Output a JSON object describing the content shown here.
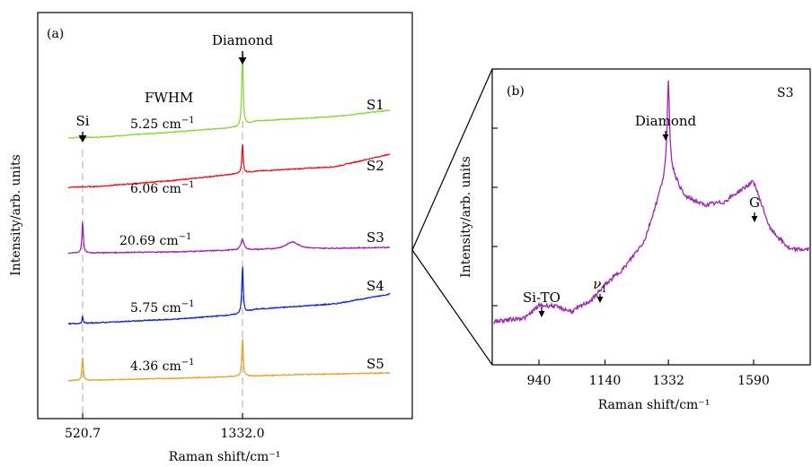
{
  "chart_data": [
    {
      "panel": "(a)",
      "type": "line",
      "xlabel": "Raman shift/cm⁻¹",
      "ylabel": "Intensity/arb. units",
      "xlim": [
        200,
        2100
      ],
      "xticks": [
        520.7,
        1332.0
      ],
      "xtick_labels": [
        "520.7",
        "1332.0"
      ],
      "grid": false,
      "legend": "none",
      "annotations": {
        "fwhm_header": "FWHM",
        "diamond_label": "Diamond",
        "si_label": "Si"
      },
      "fwhm_unit": "cm",
      "fwhm_exponent": "−1",
      "series": [
        {
          "name": "S1",
          "color": "#88d63a",
          "fwhm": "5.25",
          "baseline": [
            [
              260,
              7
            ],
            [
              600,
              9
            ],
            [
              1000,
              15
            ],
            [
              1300,
              20
            ],
            [
              1400,
              27
            ],
            [
              1800,
              32
            ],
            [
              2080,
              39
            ]
          ],
          "peaks": [
            {
              "x": 1332.0,
              "h": 88,
              "w": 4
            },
            {
              "x": 372,
              "h": -6,
              "w": 2
            }
          ]
        },
        {
          "name": "S2",
          "color": "#e31a1c",
          "fwhm": "6.06",
          "baseline": [
            [
              260,
              4
            ],
            [
              600,
              6
            ],
            [
              1000,
              13
            ],
            [
              1300,
              20
            ],
            [
              1400,
              23
            ],
            [
              1800,
              28
            ],
            [
              2080,
              42
            ]
          ],
          "peaks": [
            {
              "x": 1332.0,
              "h": 34,
              "w": 4
            },
            {
              "x": 372,
              "h": -5,
              "w": 2
            }
          ]
        },
        {
          "name": "S3",
          "color": "#9b27b0",
          "fwhm": "20.69",
          "baseline": [
            [
              260,
              2
            ],
            [
              600,
              3
            ],
            [
              1000,
              4
            ],
            [
              1300,
              6
            ],
            [
              1600,
              7
            ],
            [
              2080,
              9
            ]
          ],
          "peaks": [
            {
              "x": 520.7,
              "h": 36,
              "w": 4
            },
            {
              "x": 1332.0,
              "h": 12,
              "w": 9
            },
            {
              "x": 1585,
              "h": 8,
              "w": 40
            }
          ]
        },
        {
          "name": "S4",
          "color": "#1327c8",
          "fwhm": "5.75",
          "baseline": [
            [
              260,
              3
            ],
            [
              600,
              6
            ],
            [
              1000,
              10
            ],
            [
              1300,
              15
            ],
            [
              1400,
              21
            ],
            [
              1800,
              27
            ],
            [
              2080,
              38
            ]
          ],
          "peaks": [
            {
              "x": 1332.0,
              "h": 54,
              "w": 4
            },
            {
              "x": 520.7,
              "h": 8,
              "w": 3
            },
            {
              "x": 372,
              "h": -4,
              "w": 2
            }
          ]
        },
        {
          "name": "S5",
          "color": "#e3a52a",
          "fwhm": "4.36",
          "baseline": [
            [
              260,
              2
            ],
            [
              600,
              3
            ],
            [
              1000,
              5
            ],
            [
              1300,
              7
            ],
            [
              1600,
              9
            ],
            [
              2080,
              11
            ]
          ],
          "peaks": [
            {
              "x": 520.7,
              "h": 26,
              "w": 4
            },
            {
              "x": 1332.0,
              "h": 44,
              "w": 4
            },
            {
              "x": 372,
              "h": -4,
              "w": 2
            }
          ]
        }
      ]
    },
    {
      "panel": "(b)",
      "type": "line",
      "sample": "S3",
      "xlabel": "Raman shift/cm⁻¹",
      "ylabel": "Intensity/arb. units",
      "xlim": [
        760,
        1840
      ],
      "ylim": [
        0,
        1
      ],
      "xticks": [
        940,
        1140,
        1332,
        1590
      ],
      "xtick_labels": [
        "940",
        "1140",
        "1332",
        "1590"
      ],
      "yticks": [
        0.2,
        0.4,
        0.6,
        0.8,
        1.0
      ],
      "grid": false,
      "legend": "none",
      "color": "#9b27b0",
      "annotations": {
        "si_to": "Si-TO",
        "nu": "ν",
        "nu_sub": "1",
        "diamond": "Diamond",
        "g": "G"
      },
      "baseline": [
        [
          760,
          0.14
        ],
        [
          900,
          0.16
        ],
        [
          940,
          0.2
        ],
        [
          980,
          0.2
        ],
        [
          1040,
          0.18
        ],
        [
          1100,
          0.22
        ],
        [
          1140,
          0.27
        ],
        [
          1200,
          0.33
        ],
        [
          1260,
          0.42
        ],
        [
          1300,
          0.56
        ],
        [
          1332,
          0.68
        ],
        [
          1380,
          0.57
        ],
        [
          1440,
          0.54
        ],
        [
          1500,
          0.55
        ],
        [
          1550,
          0.59
        ],
        [
          1590,
          0.62
        ],
        [
          1640,
          0.46
        ],
        [
          1700,
          0.39
        ],
        [
          1760,
          0.39
        ],
        [
          1840,
          0.39
        ]
      ],
      "peaks": [
        {
          "x": 1332,
          "y": 0.28,
          "w": 4
        }
      ]
    }
  ]
}
